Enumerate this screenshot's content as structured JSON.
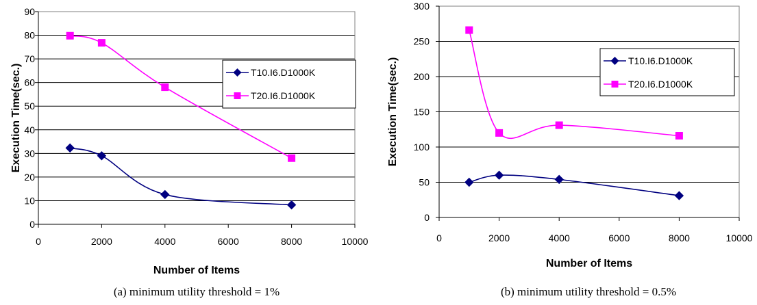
{
  "chart_data": [
    {
      "type": "line",
      "x": [
        1000,
        2000,
        4000,
        8000
      ],
      "series": [
        {
          "name": "T10.I6.D1000K",
          "values": [
            32.3,
            29,
            12.6,
            8.2
          ],
          "color": "#000080",
          "marker": "diamond"
        },
        {
          "name": "T20.I6.D1000K",
          "values": [
            79.8,
            76.8,
            58,
            28
          ],
          "color": "#ff00ff",
          "marker": "square"
        }
      ],
      "xlim": [
        0,
        10000
      ],
      "ylim": [
        0,
        90
      ],
      "xticks": [
        0,
        2000,
        4000,
        6000,
        8000,
        10000
      ],
      "yticks": [
        0,
        10,
        20,
        30,
        40,
        50,
        60,
        70,
        80,
        90
      ],
      "xlabel": "Number of Items",
      "ylabel": "Execution Time(sec.)",
      "caption": "(a) minimum utility threshold = 1%",
      "grid": "horizontal",
      "legend": "right"
    },
    {
      "type": "line",
      "x": [
        1000,
        2000,
        4000,
        8000
      ],
      "series": [
        {
          "name": "T10.I6.D1000K",
          "values": [
            50,
            60,
            54,
            31
          ],
          "color": "#000080",
          "marker": "diamond"
        },
        {
          "name": "T20.I6.D1000K",
          "values": [
            266,
            120,
            131,
            116
          ],
          "color": "#ff00ff",
          "marker": "square"
        }
      ],
      "xlim": [
        0,
        10000
      ],
      "ylim": [
        0,
        300
      ],
      "xticks": [
        0,
        2000,
        4000,
        6000,
        8000,
        10000
      ],
      "yticks": [
        0,
        50,
        100,
        150,
        200,
        250,
        300
      ],
      "xlabel": "Number of Items",
      "ylabel": "Execution Time(sec.)",
      "caption": "(b) minimum utility threshold = 0.5%",
      "grid": "horizontal",
      "legend": "top-right"
    }
  ]
}
